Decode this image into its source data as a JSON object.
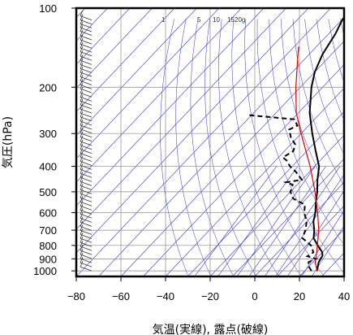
{
  "chart_data": {
    "type": "skew-t log-p sounding",
    "xlabel": "気温(実線), 露点(破線)",
    "ylabel": "気圧(hPa)",
    "x_ticks": [
      -80,
      -60,
      -40,
      -20,
      0,
      20,
      40
    ],
    "y_ticks": [
      100,
      200,
      300,
      400,
      500,
      600,
      700,
      800,
      900,
      1000
    ],
    "x_range_at_bottom": [
      -80,
      40
    ],
    "y_range": [
      100,
      1050
    ],
    "y_scale": "log",
    "grid": true,
    "mixing_ratio_labels": [
      "1",
      "5",
      "10",
      "15",
      "20g"
    ],
    "colors": {
      "temperature": "#000000",
      "dewpoint": "#000000",
      "parcel": "#e00000",
      "background_lines": "#3333cc",
      "grid": "#888888",
      "wind_barbs": "#333333"
    },
    "series": [
      {
        "style": "solid",
        "points": [
          {
            "p": 1000,
            "t": 25.5
          },
          {
            "p": 975,
            "t": 24.5
          },
          {
            "p": 950,
            "t": 23.5
          },
          {
            "p": 925,
            "t": 22.5
          },
          {
            "p": 900,
            "t": 22
          },
          {
            "p": 875,
            "t": 21.5
          },
          {
            "p": 850,
            "t": 20
          },
          {
            "p": 800,
            "t": 15
          },
          {
            "p": 750,
            "t": 10
          },
          {
            "p": 700,
            "t": 7
          },
          {
            "p": 650,
            "t": 3
          },
          {
            "p": 600,
            "t": 0
          },
          {
            "p": 550,
            "t": -4
          },
          {
            "p": 500,
            "t": -8
          },
          {
            "p": 450,
            "t": -13
          },
          {
            "p": 400,
            "t": -18
          },
          {
            "p": 350,
            "t": -26
          },
          {
            "p": 300,
            "t": -35
          },
          {
            "p": 250,
            "t": -45
          },
          {
            "p": 200,
            "t": -55
          },
          {
            "p": 175,
            "t": -60
          },
          {
            "p": 150,
            "t": -64
          },
          {
            "p": 125,
            "t": -67
          },
          {
            "p": 110,
            "t": -70
          },
          {
            "p": 100,
            "t": -69
          }
        ]
      },
      {
        "style": "dashed",
        "points": [
          {
            "p": 1000,
            "t": 23
          },
          {
            "p": 950,
            "t": 19
          },
          {
            "p": 925,
            "t": 18
          },
          {
            "p": 900,
            "t": 20
          },
          {
            "p": 880,
            "t": 15
          },
          {
            "p": 850,
            "t": 16
          },
          {
            "p": 800,
            "t": 12
          },
          {
            "p": 750,
            "t": 5
          },
          {
            "p": 700,
            "t": 3
          },
          {
            "p": 650,
            "t": 0
          },
          {
            "p": 600,
            "t": -5
          },
          {
            "p": 560,
            "t": -8
          },
          {
            "p": 530,
            "t": -16
          },
          {
            "p": 500,
            "t": -20
          },
          {
            "p": 470,
            "t": -22
          },
          {
            "p": 460,
            "t": -26
          },
          {
            "p": 450,
            "t": -20
          },
          {
            "p": 420,
            "t": -26
          },
          {
            "p": 400,
            "t": -31
          },
          {
            "p": 380,
            "t": -35
          },
          {
            "p": 370,
            "t": -38
          },
          {
            "p": 350,
            "t": -36
          },
          {
            "p": 330,
            "t": -38
          },
          {
            "p": 310,
            "t": -43
          },
          {
            "p": 290,
            "t": -47
          },
          {
            "p": 280,
            "t": -45
          },
          {
            "p": 265,
            "t": -49
          },
          {
            "p": 255,
            "t": -72
          }
        ]
      },
      {
        "style": "parcel",
        "points": [
          {
            "p": 1000,
            "t": 25.5
          },
          {
            "p": 925,
            "t": 21
          },
          {
            "p": 850,
            "t": 17.5
          },
          {
            "p": 750,
            "t": 12
          },
          {
            "p": 700,
            "t": 9
          },
          {
            "p": 600,
            "t": 1
          },
          {
            "p": 500,
            "t": -9
          },
          {
            "p": 400,
            "t": -22
          },
          {
            "p": 300,
            "t": -40
          },
          {
            "p": 250,
            "t": -51
          },
          {
            "p": 200,
            "t": -62
          },
          {
            "p": 150,
            "t": -75
          },
          {
            "p": 140,
            "t": -78
          }
        ]
      }
    ]
  }
}
